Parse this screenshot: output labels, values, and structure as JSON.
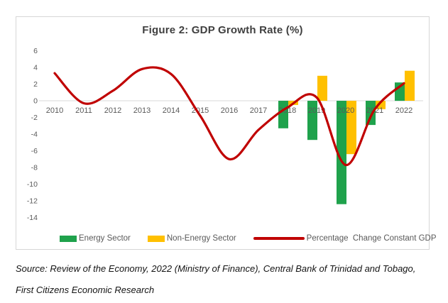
{
  "figure": {
    "title": "Figure 2: GDP Growth Rate (%)"
  },
  "chart_data": {
    "type": "combo-bar-line",
    "title": "Figure 2: GDP Growth Rate (%)",
    "categories": [
      "2010",
      "2011",
      "2012",
      "2013",
      "2014",
      "2015",
      "2016",
      "2017",
      "2018",
      "2019",
      "2020",
      "2021",
      "2022"
    ],
    "series": [
      {
        "name": "Energy Sector",
        "type": "bar",
        "color": "#1fa24c",
        "values": [
          null,
          null,
          null,
          null,
          null,
          null,
          null,
          null,
          -3.3,
          -4.7,
          -12.4,
          -2.9,
          2.2
        ]
      },
      {
        "name": "Non-Energy Sector",
        "type": "bar",
        "color": "#ffc000",
        "values": [
          null,
          null,
          null,
          null,
          null,
          null,
          null,
          null,
          -0.5,
          3.0,
          -6.4,
          -1.0,
          3.6
        ]
      },
      {
        "name": "Percentage  Change Constant GDP",
        "type": "line",
        "color": "#c00000",
        "values": [
          3.3,
          -0.3,
          1.2,
          3.8,
          3.2,
          -1.8,
          -7.0,
          -3.5,
          -0.8,
          0.4,
          -7.7,
          -1.0,
          2.1
        ]
      }
    ],
    "ylim": [
      -14,
      6
    ],
    "yticks": [
      6,
      4,
      2,
      0,
      -2,
      -4,
      -6,
      -8,
      -10,
      -12,
      -14
    ],
    "grid": "zero-line-only",
    "legend_position": "bottom",
    "axis_color": "#595959",
    "zero_line_color": "#d9d9d9"
  },
  "source": {
    "line1": "Source: Review of the Economy, 2022 (Ministry of Finance), Central Bank of Trinidad and Tobago,",
    "line2": "First Citizens Economic Research"
  }
}
